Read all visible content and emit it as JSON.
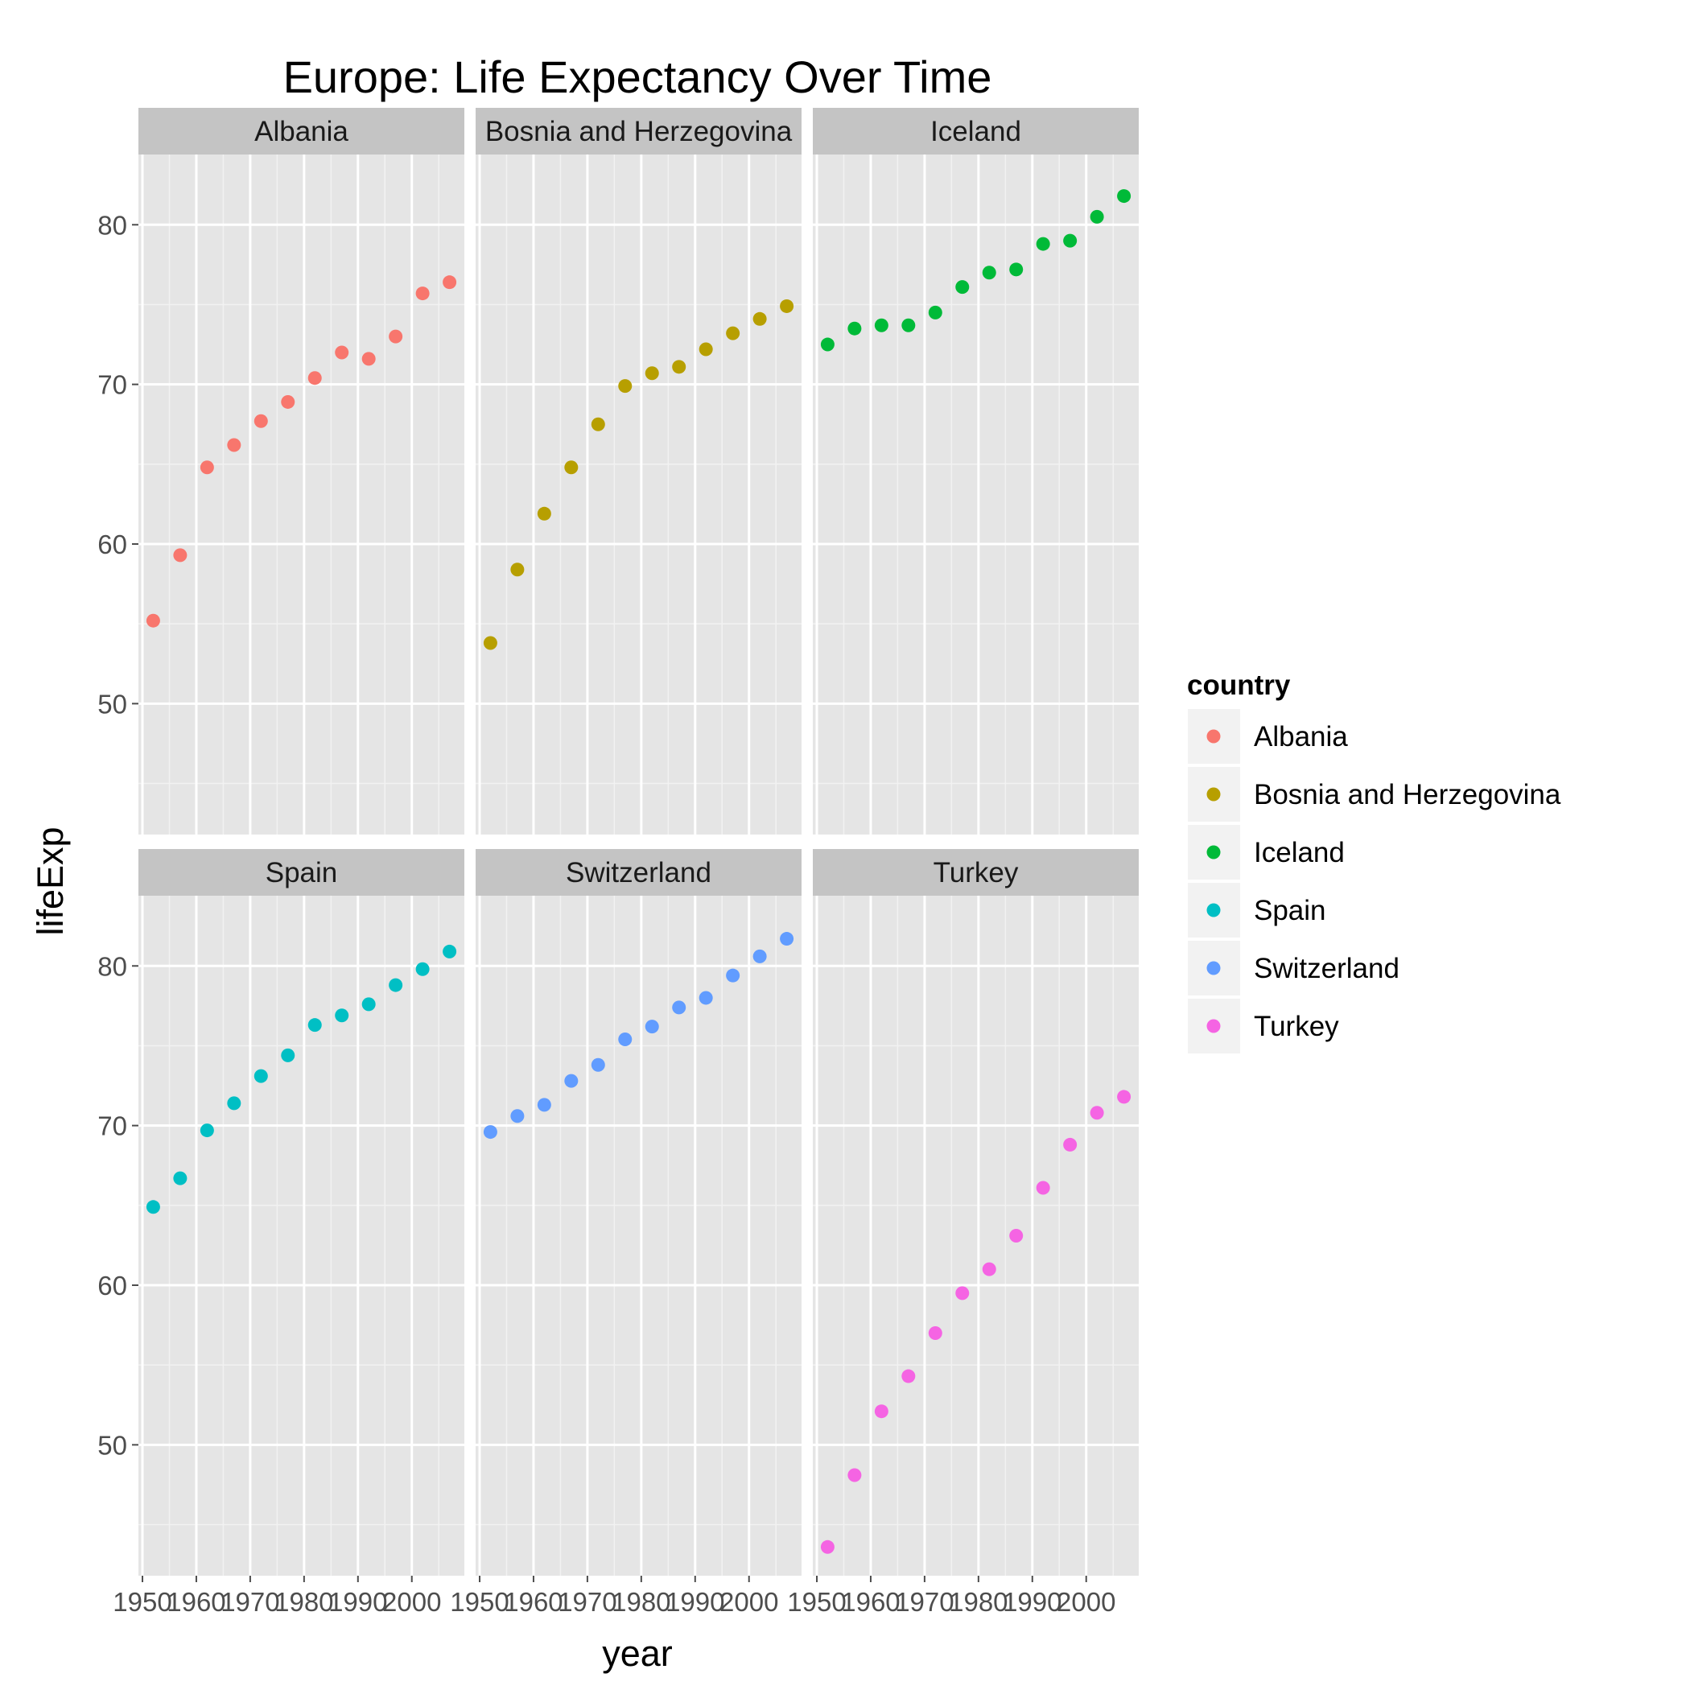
{
  "chart_data": {
    "type": "scatter",
    "title": "Europe: Life Expectancy Over Time",
    "xlabel": "year",
    "ylabel": "lifeExp",
    "x": [
      1952,
      1957,
      1962,
      1967,
      1972,
      1977,
      1982,
      1987,
      1992,
      1997,
      2002,
      2007
    ],
    "xlim": [
      1949.25,
      2009.75
    ],
    "ylim": [
      41.8,
      84.4
    ],
    "xticks": [
      1950,
      1960,
      1970,
      1980,
      1990,
      2000
    ],
    "xtick_labels": [
      "1950",
      "1960",
      "1970",
      "1980",
      "1990",
      "2000"
    ],
    "yticks": [
      50,
      60,
      70,
      80
    ],
    "ytick_labels": [
      "50",
      "60",
      "70",
      "80"
    ],
    "grid": true,
    "legend": {
      "title": "country",
      "placement": "right"
    },
    "facet_rows": 2,
    "facet_cols": 3,
    "series": [
      {
        "name": "Albania",
        "color": "#F8766D",
        "values": [
          55.2,
          59.3,
          64.8,
          66.2,
          67.7,
          68.9,
          70.4,
          72.0,
          71.6,
          73.0,
          75.7,
          76.4
        ]
      },
      {
        "name": "Bosnia and Herzegovina",
        "color": "#B79F00",
        "values": [
          53.8,
          58.4,
          61.9,
          64.8,
          67.5,
          69.9,
          70.7,
          71.1,
          72.2,
          73.2,
          74.1,
          74.9
        ]
      },
      {
        "name": "Iceland",
        "color": "#00BA38",
        "values": [
          72.5,
          73.5,
          73.7,
          73.7,
          74.5,
          76.1,
          77.0,
          77.2,
          78.8,
          79.0,
          80.5,
          81.8
        ]
      },
      {
        "name": "Spain",
        "color": "#00BFC4",
        "values": [
          64.9,
          66.7,
          69.7,
          71.4,
          73.1,
          74.4,
          76.3,
          76.9,
          77.6,
          78.8,
          79.8,
          80.9
        ]
      },
      {
        "name": "Switzerland",
        "color": "#619CFF",
        "values": [
          69.6,
          70.6,
          71.3,
          72.8,
          73.8,
          75.4,
          76.2,
          77.4,
          78.0,
          79.4,
          80.6,
          81.7
        ]
      },
      {
        "name": "Turkey",
        "color": "#F564E3",
        "values": [
          43.6,
          48.1,
          52.1,
          54.3,
          57.0,
          59.5,
          61.0,
          63.1,
          66.1,
          68.8,
          70.8,
          71.8
        ]
      }
    ]
  }
}
